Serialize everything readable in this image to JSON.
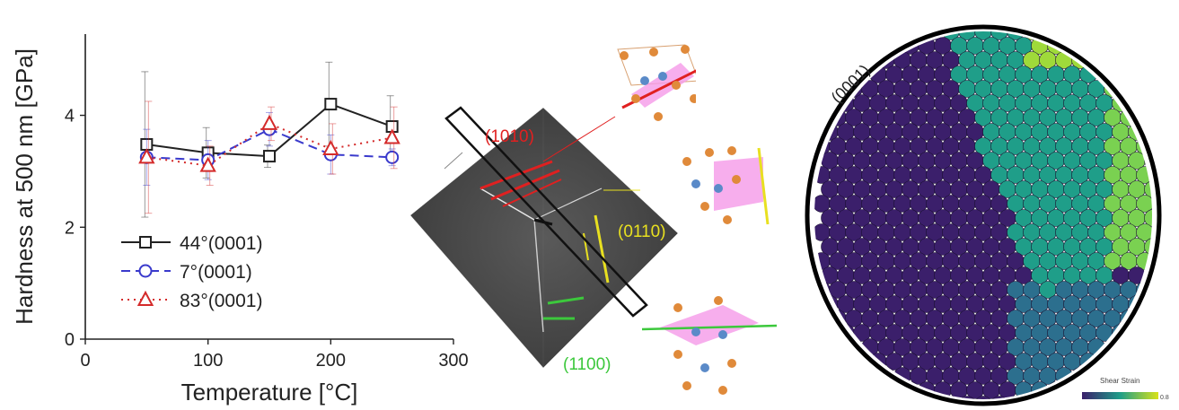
{
  "chart_data": {
    "type": "line",
    "xlabel": "Temperature [°C]",
    "ylabel": "Hardness at 500 nm [GPa]",
    "xlim": [
      0,
      300
    ],
    "ylim": [
      0,
      5.5
    ],
    "xticks": [
      "0",
      "100",
      "200",
      "300"
    ],
    "yticks": [
      "0",
      "2",
      "4"
    ],
    "x": [
      50,
      100,
      150,
      200,
      250
    ],
    "series": [
      {
        "name": "44°(0001)",
        "values": [
          3.48,
          3.33,
          3.27,
          4.2,
          3.8
        ],
        "errors": [
          1.3,
          0.45,
          0.2,
          0.75,
          0.55
        ],
        "color": "#222222",
        "marker": "square",
        "dash": "solid"
      },
      {
        "name": "7°(0001)",
        "values": [
          3.25,
          3.2,
          3.75,
          3.3,
          3.25
        ],
        "errors": [
          0.5,
          0.35,
          0.3,
          0.35,
          0.15
        ],
        "color": "#3a3acc",
        "marker": "circle",
        "dash": "dashed"
      },
      {
        "name": "83°(0001)",
        "values": [
          3.25,
          3.1,
          3.85,
          3.4,
          3.6
        ],
        "errors": [
          1.0,
          0.35,
          0.3,
          0.45,
          0.55
        ],
        "color": "#d42a2a",
        "marker": "triangle",
        "dash": "dotted"
      }
    ],
    "legend": "lower-left"
  },
  "sem": {
    "label_red": "(1010)",
    "label_yellow": "(0110)",
    "label_green": "(1100)"
  },
  "atom": {
    "facet_label": "(0001)",
    "colorbar_title": "Shear Strain",
    "colorbar_max": "0.8"
  },
  "colors": {
    "red_plane": "#e02020",
    "yellow_plane": "#e8e020",
    "green_plane": "#3cc83c",
    "plane_fill": "#f59ae8",
    "atom_low": "#3b1f6b",
    "atom_mid": "#1f9e89",
    "atom_high": "#d8e219"
  }
}
